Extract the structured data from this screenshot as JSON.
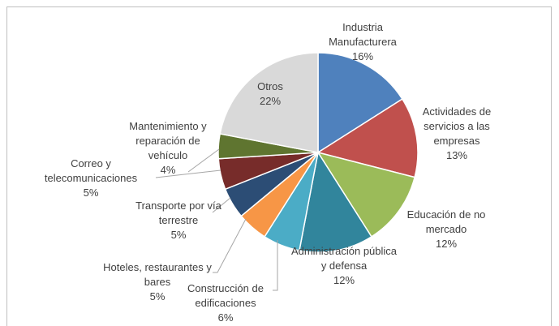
{
  "chart_data": {
    "type": "pie",
    "categories": [
      "Industria Manufacturera",
      "Actividades de servicios a las empresas",
      "Educación de no mercado",
      "Administración pública y defensa",
      "Construcción de edificaciones",
      "Hoteles, restaurantes y bares",
      "Transporte por vía terrestre",
      "Correo y telecomunicaciones",
      "Mantenimiento y reparación de vehículo",
      "Otros"
    ],
    "values": [
      16,
      13,
      12,
      12,
      6,
      5,
      5,
      5,
      4,
      22
    ],
    "value_labels": [
      "16%",
      "13%",
      "12%",
      "12%",
      "6%",
      "5%",
      "5%",
      "5%",
      "4%",
      "22%"
    ],
    "colors": [
      "#4f81bd",
      "#c0504d",
      "#9bbb59",
      "#31859c",
      "#4bacc6",
      "#f79646",
      "#2c4d75",
      "#772c2a",
      "#5f7530",
      "#d9d9d9"
    ]
  }
}
